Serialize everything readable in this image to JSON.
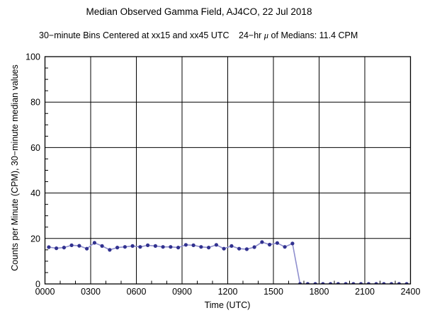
{
  "chart_data": {
    "type": "line",
    "title": "Median Observed Gamma Field, AJ4CO, 22 Jul 2018",
    "subtitle_bins": "30−minute Bins Centered at xx15 and xx45 UTC",
    "mean_annotation": {
      "pre": "24−hr ",
      "mu": "μ",
      "post": " of Medians: 11.4 CPM",
      "value_cpm": 11.4
    },
    "xlabel": "Time (UTC)",
    "ylabel": "Counts per Minute (CPM), 30−minute median values",
    "x_ticks": [
      "0000",
      "0300",
      "0600",
      "0900",
      "1200",
      "1500",
      "1800",
      "2100",
      "2400"
    ],
    "x_tick_hours": [
      0,
      3,
      6,
      9,
      12,
      15,
      18,
      21,
      24
    ],
    "x_minor_tick_every_hours": 1,
    "y_ticks": [
      0,
      20,
      40,
      60,
      80,
      100
    ],
    "y_minor_tick_step": 5,
    "ylim": [
      0,
      100
    ],
    "xlim_hours": [
      0,
      24
    ],
    "grid": true,
    "legend": "none",
    "times": [
      "0015",
      "0045",
      "0115",
      "0145",
      "0215",
      "0245",
      "0315",
      "0345",
      "0415",
      "0445",
      "0515",
      "0545",
      "0615",
      "0645",
      "0715",
      "0745",
      "0815",
      "0845",
      "0915",
      "0945",
      "1015",
      "1045",
      "1115",
      "1145",
      "1215",
      "1245",
      "1315",
      "1345",
      "1415",
      "1445",
      "1515",
      "1545",
      "1615",
      "1645",
      "1715",
      "1745",
      "1815",
      "1845",
      "1915",
      "1945",
      "2015",
      "2045",
      "2115",
      "2145",
      "2215",
      "2245",
      "2315",
      "2345"
    ],
    "values": [
      16.2,
      15.7,
      16.0,
      17.0,
      16.8,
      15.5,
      18.1,
      16.7,
      15.0,
      16.0,
      16.3,
      16.7,
      16.3,
      17.0,
      16.7,
      16.3,
      16.3,
      16.0,
      17.2,
      17.0,
      16.3,
      16.0,
      17.2,
      15.5,
      16.7,
      15.5,
      15.3,
      16.2,
      18.4,
      17.3,
      18.0,
      16.3,
      17.8,
      0,
      0,
      0,
      0,
      0,
      0,
      0,
      0,
      0,
      0,
      0,
      0,
      0,
      0,
      0
    ],
    "colors": {
      "line": "#8f8fce",
      "marker": "#31318f",
      "axis": "#000000",
      "text": "#000000",
      "background": "#ffffff"
    }
  }
}
